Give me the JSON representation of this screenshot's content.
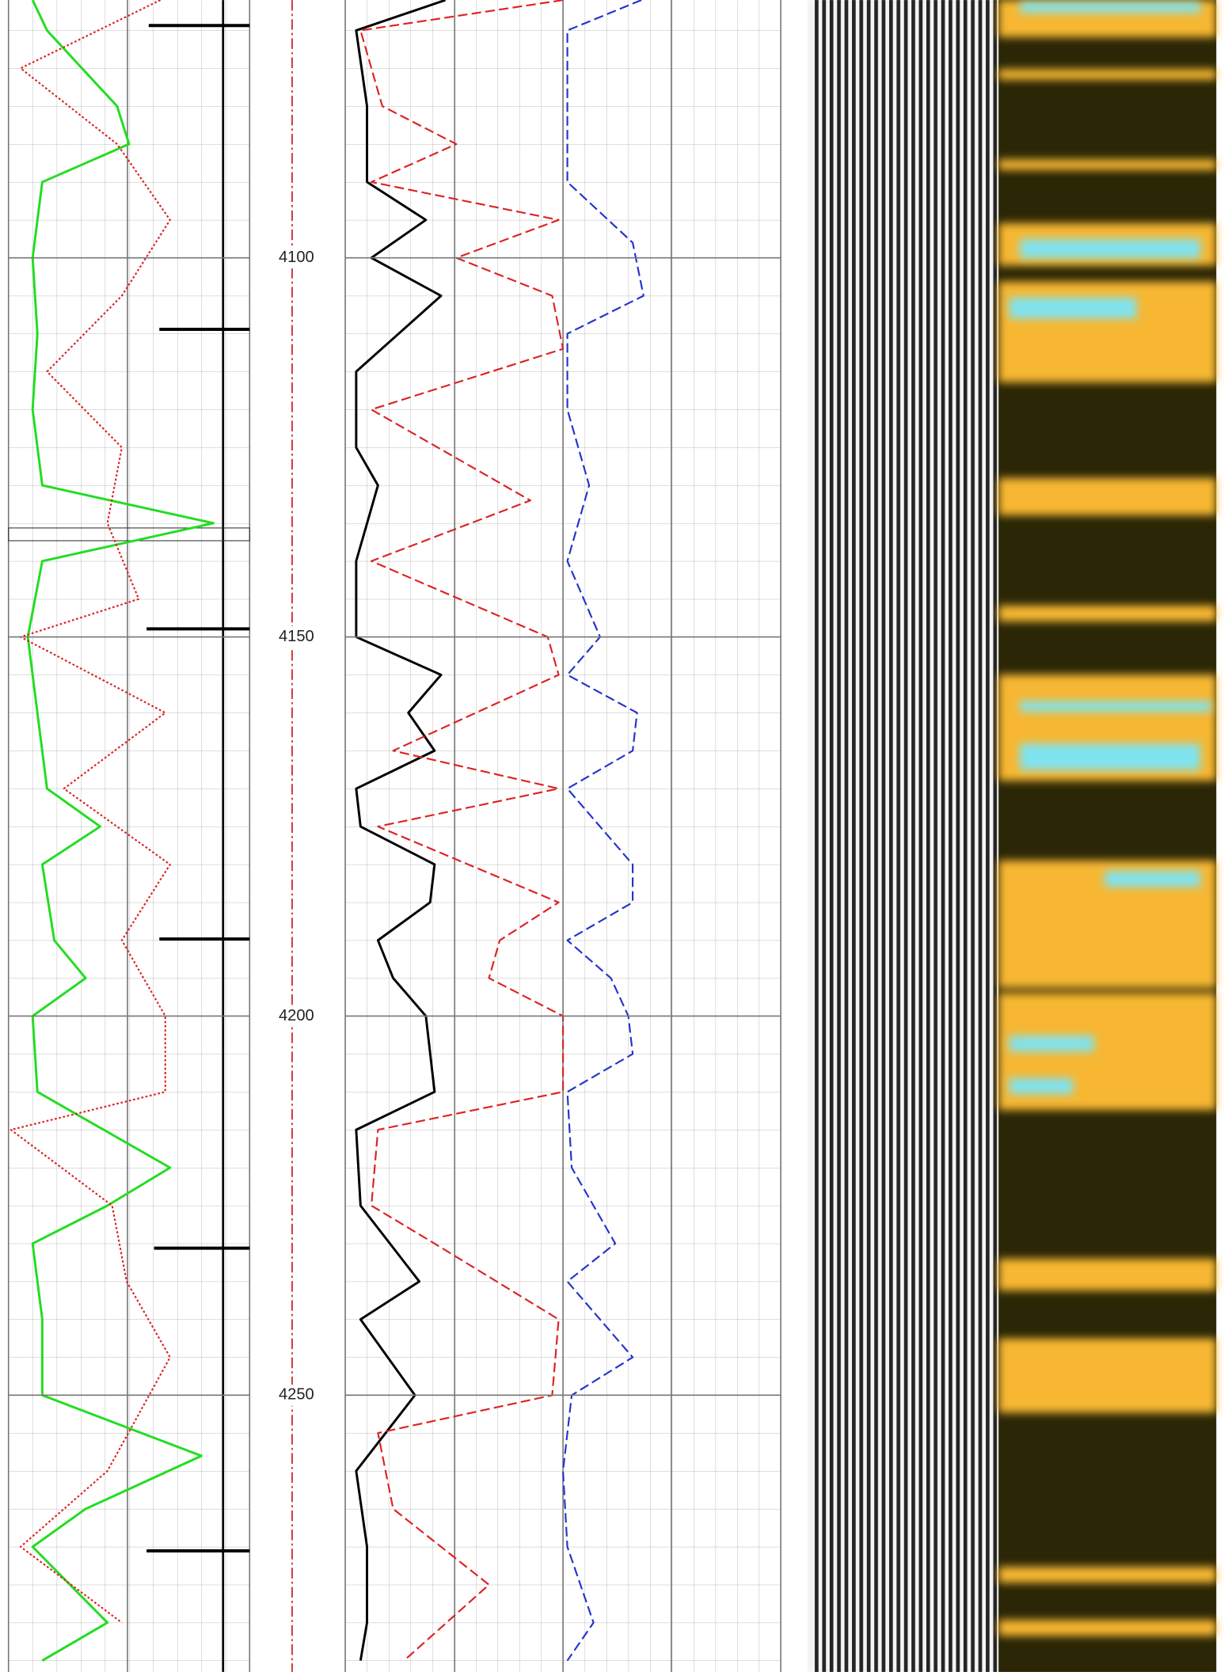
{
  "chart_data": {
    "type": "well-log",
    "ylim": [
      4066,
      4286.5
    ],
    "yticks": [
      4100,
      4150,
      4200,
      4250
    ],
    "tracks": [
      {
        "xlim": [
          0,
          10
        ]
      },
      {
        "xlim": [
          0,
          20
        ]
      }
    ],
    "series": [
      {
        "color": "#22dd22",
        "style": "solid",
        "track": 0,
        "depth": [
          4066,
          4070,
          4080,
          4085,
          4090,
          4100,
          4110,
          4120,
          4130,
          4135,
          4140,
          4150,
          4160,
          4170,
          4175,
          4180,
          4190,
          4195,
          4200,
          4210,
          4220,
          4225,
          4230,
          4240,
          4250,
          4258,
          4265,
          4270,
          4280,
          4285
        ],
        "values": [
          1.0,
          1.6,
          4.5,
          5.0,
          1.4,
          1.0,
          1.2,
          1.0,
          1.4,
          8.5,
          1.4,
          0.8,
          1.2,
          1.6,
          3.8,
          1.4,
          1.9,
          3.2,
          1.0,
          1.2,
          6.7,
          4.1,
          1.0,
          1.4,
          1.4,
          8.0,
          3.2,
          1.0,
          4.1,
          1.4
        ]
      },
      {
        "color": "#dd2222",
        "style": "dotted",
        "track": 0,
        "depth": [
          4066,
          4075,
          4085,
          4095,
          4105,
          4115,
          4125,
          4135,
          4145,
          4150,
          4160,
          4170,
          4180,
          4190,
          4200,
          4210,
          4215,
          4225,
          4235,
          4245,
          4260,
          4270,
          4280
        ],
        "values": [
          6.3,
          0.5,
          4.5,
          6.7,
          4.7,
          1.6,
          4.7,
          4.1,
          5.4,
          0.5,
          6.5,
          2.3,
          6.7,
          4.7,
          6.5,
          6.5,
          0.1,
          4.3,
          4.9,
          6.7,
          4.1,
          0.5,
          4.7
        ]
      },
      {
        "color": "#000000",
        "style": "solid",
        "track": 1,
        "depth": [
          4066,
          4070,
          4080,
          4090,
          4095,
          4100,
          4105,
          4115,
          4125,
          4130,
          4140,
          4150,
          4155,
          4160,
          4165,
          4170,
          4175,
          4180,
          4185,
          4190,
          4195,
          4200,
          4210,
          4215,
          4225,
          4235,
          4240,
          4250,
          4260,
          4270,
          4280,
          4285
        ],
        "values": [
          4.6,
          0.5,
          1.0,
          1.0,
          3.7,
          1.2,
          4.4,
          0.5,
          0.5,
          1.5,
          0.5,
          0.5,
          4.4,
          2.9,
          4.1,
          0.5,
          0.7,
          4.1,
          3.9,
          1.5,
          2.2,
          3.7,
          4.1,
          0.5,
          0.7,
          3.4,
          0.7,
          3.2,
          0.5,
          1.0,
          1.0,
          0.7
        ]
      },
      {
        "color": "#dd2222",
        "style": "dashed",
        "track": 1,
        "depth": [
          4066,
          4070,
          4080,
          4085,
          4090,
          4095,
          4100,
          4105,
          4112,
          4120,
          4132,
          4140,
          4150,
          4155,
          4165,
          4170,
          4175,
          4185,
          4190,
          4195,
          4200,
          4210,
          4215,
          4225,
          4230,
          4240,
          4250,
          4255,
          4265,
          4275,
          4285
        ],
        "values": [
          10,
          0.7,
          1.7,
          5.1,
          1.2,
          9.8,
          5.1,
          9.5,
          10,
          1.2,
          8.5,
          1.2,
          9.3,
          9.8,
          2.2,
          9.8,
          1.5,
          9.8,
          7.1,
          6.6,
          10,
          10,
          1.5,
          1.2,
          4.1,
          9.8,
          9.5,
          1.5,
          2.2,
          6.6,
          2.7
        ]
      },
      {
        "color": "#2233cc",
        "style": "dashed",
        "track": 1,
        "depth": [
          4066,
          4070,
          4080,
          4090,
          4098,
          4105,
          4110,
          4120,
          4130,
          4140,
          4150,
          4155,
          4160,
          4165,
          4170,
          4180,
          4185,
          4190,
          4195,
          4200,
          4205,
          4210,
          4220,
          4230,
          4235,
          4245,
          4250,
          4260,
          4270,
          4280,
          4285
        ],
        "values": [
          13.6,
          10.2,
          10.2,
          10.2,
          13.2,
          13.7,
          10.2,
          10.2,
          11.2,
          10.2,
          11.7,
          10.2,
          13.4,
          13.2,
          10.2,
          13.2,
          13.2,
          10.2,
          12.2,
          13.0,
          13.2,
          10.2,
          10.4,
          12.4,
          10.2,
          13.2,
          10.4,
          10.0,
          10.2,
          11.4,
          10.2
        ]
      }
    ]
  }
}
